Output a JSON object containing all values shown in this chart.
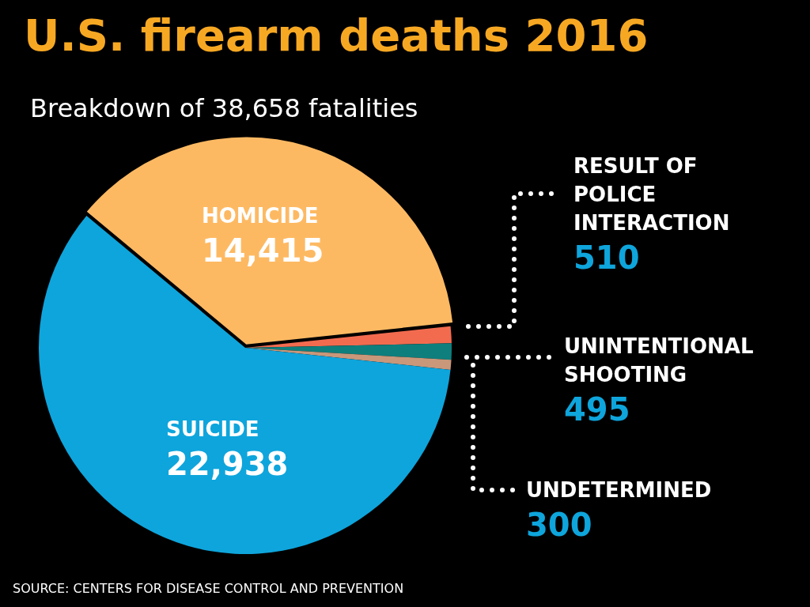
{
  "chart_data": {
    "type": "pie",
    "title": "U.S. firearm deaths 2016",
    "subtitle": "Breakdown of 38,658 fatalities",
    "categories": [
      "RESULT OF POLICE INTERACTION",
      "UNINTENTIONAL SHOOTING",
      "UNDETERMINED",
      "SUICIDE",
      "HOMICIDE"
    ],
    "values": [
      510,
      495,
      300,
      22938,
      14415
    ],
    "value_labels": [
      "510",
      "495",
      "300",
      "22,938",
      "14,415"
    ],
    "colors": [
      "#f26b4f",
      "#0e7f7d",
      "#c9977a",
      "#0ea5dc",
      "#fdb962"
    ],
    "legend": false,
    "annotations": [
      "SOURCE: CENTERS FOR DISEASE CONTROL AND PREVENTION"
    ]
  }
}
